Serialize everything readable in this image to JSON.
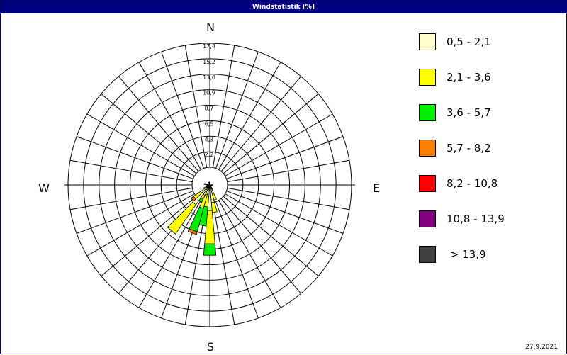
{
  "window": {
    "title": "Windstatistik [%]"
  },
  "footer": {
    "date": "27.9.2021"
  },
  "compass": {
    "north": "N",
    "east": "E",
    "south": "S",
    "west": "W"
  },
  "chart_data": {
    "type": "polar-stacked-bar",
    "unit": "%",
    "direction_sectors": 36,
    "radial_tick_labels": [
      "2,2",
      "4,3",
      "6,5",
      "8,7",
      "10,9",
      "13,0",
      "15,2",
      "17,4"
    ],
    "radial_max": 17.4,
    "grid": true,
    "legend_position": "right",
    "speed_classes": [
      {
        "label": "0,5 - 2,1",
        "color": "#ffffcc"
      },
      {
        "label": "2,1 - 3,6",
        "color": "#ffff00"
      },
      {
        "label": "3,6 - 5,7",
        "color": "#00ee00"
      },
      {
        "label": "5,7 - 8,2",
        "color": "#ff8000"
      },
      {
        "label": "8,2 - 10,8",
        "color": "#ff0000"
      },
      {
        "label": "10,8 - 13,9",
        "color": "#800080"
      },
      {
        "label": " > 13,9",
        "color": "#404040"
      }
    ],
    "sectors": [
      {
        "direction_deg": 0,
        "values": [
          0.2,
          0.2,
          0,
          0,
          0,
          0,
          0
        ]
      },
      {
        "direction_deg": 90,
        "values": [
          0.2,
          0.2,
          0,
          0,
          0,
          0,
          0
        ]
      },
      {
        "direction_deg": 110,
        "values": [
          0.2,
          0.1,
          0,
          0,
          0,
          0,
          0
        ]
      },
      {
        "direction_deg": 150,
        "values": [
          0.5,
          0.2,
          0,
          0,
          0,
          0,
          0
        ]
      },
      {
        "direction_deg": 160,
        "values": [
          1.2,
          1.0,
          0,
          0,
          0,
          0,
          0
        ]
      },
      {
        "direction_deg": 170,
        "values": [
          2.5,
          1.4,
          0,
          0,
          0,
          0,
          0
        ]
      },
      {
        "direction_deg": 180,
        "values": [
          3.6,
          4.7,
          1.6,
          0,
          0,
          0,
          0
        ]
      },
      {
        "direction_deg": 190,
        "values": [
          1.6,
          1.5,
          2.7,
          0,
          0,
          0,
          0
        ]
      },
      {
        "direction_deg": 200,
        "values": [
          1.4,
          2.0,
          3.4,
          0.4,
          0,
          0,
          0
        ]
      },
      {
        "direction_deg": 210,
        "values": [
          1.6,
          0.6,
          0.5,
          0,
          0,
          0,
          0
        ]
      },
      {
        "direction_deg": 220,
        "values": [
          3.4,
          5.0,
          0,
          0,
          0,
          0,
          0
        ]
      },
      {
        "direction_deg": 230,
        "values": [
          1.6,
          1.2,
          0,
          0.4,
          0,
          0,
          0
        ]
      },
      {
        "direction_deg": 240,
        "values": [
          0.6,
          0.3,
          0,
          0,
          0,
          0,
          0
        ]
      },
      {
        "direction_deg": 250,
        "values": [
          0.3,
          0.2,
          0,
          0,
          0,
          0,
          0
        ]
      },
      {
        "direction_deg": 260,
        "values": [
          0.3,
          0.1,
          0,
          0,
          0,
          0,
          0
        ]
      },
      {
        "direction_deg": 270,
        "values": [
          0.3,
          0.1,
          0,
          0,
          0,
          0,
          0
        ]
      },
      {
        "direction_deg": 280,
        "values": [
          0.2,
          0,
          0.6,
          0,
          0,
          0,
          0
        ]
      },
      {
        "direction_deg": 340,
        "values": [
          0.3,
          0.1,
          0,
          0,
          0,
          0,
          0
        ]
      },
      {
        "direction_deg": 350,
        "values": [
          0.3,
          0.1,
          0,
          0,
          0,
          0,
          0
        ]
      }
    ]
  }
}
